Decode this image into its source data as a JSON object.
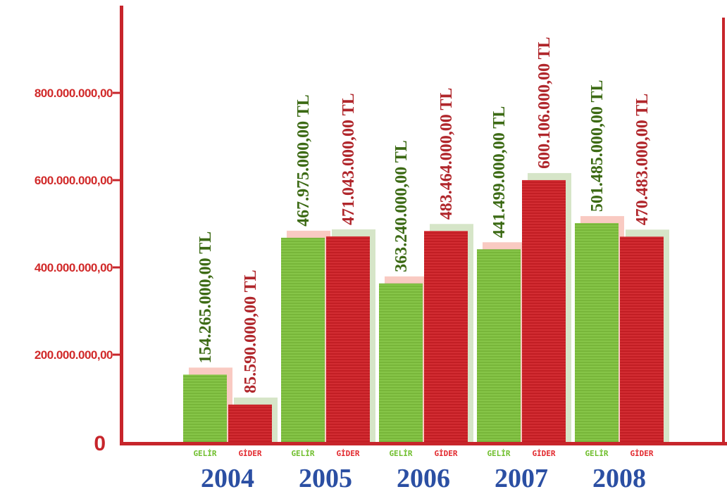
{
  "chart_data": {
    "type": "bar",
    "categories": [
      "2004",
      "2005",
      "2006",
      "2007",
      "2008"
    ],
    "series": [
      {
        "name": "GELİR",
        "color": "#7fbe3f",
        "label_color": "#3c6a14",
        "sublabel_color": "#6fbe2c",
        "values": [
          154265000,
          467975000,
          363240000,
          441499000,
          501485000
        ],
        "value_labels": [
          "154.265.000,00 TL",
          "467.975.000,00 TL",
          "363.240.000,00 TL",
          "441.499.000,00 TL",
          "501.485.000,00 TL"
        ]
      },
      {
        "name": "GİDER",
        "color": "#cc2027",
        "label_color": "#b0262b",
        "sublabel_color": "#e2282d",
        "values": [
          85590000,
          471043000,
          483464000,
          600106000,
          470483000
        ],
        "value_labels": [
          "85.590.000,00 TL",
          "471.043.000,00 TL",
          "483.464.000,00 TL",
          "600.106.000,00 TL",
          "470.483.000,00 TL"
        ]
      }
    ],
    "y_ticks": [
      0,
      200000000,
      400000000,
      600000000,
      800000000
    ],
    "y_tick_labels": [
      "0",
      "200.000.000,00",
      "400.000.000,00",
      "600.000.000,00",
      "800.000.000,00"
    ],
    "ylim": [
      0,
      800000000
    ],
    "axis_color": "#c7252b",
    "year_color": "#2b4fa3",
    "grid": false
  }
}
